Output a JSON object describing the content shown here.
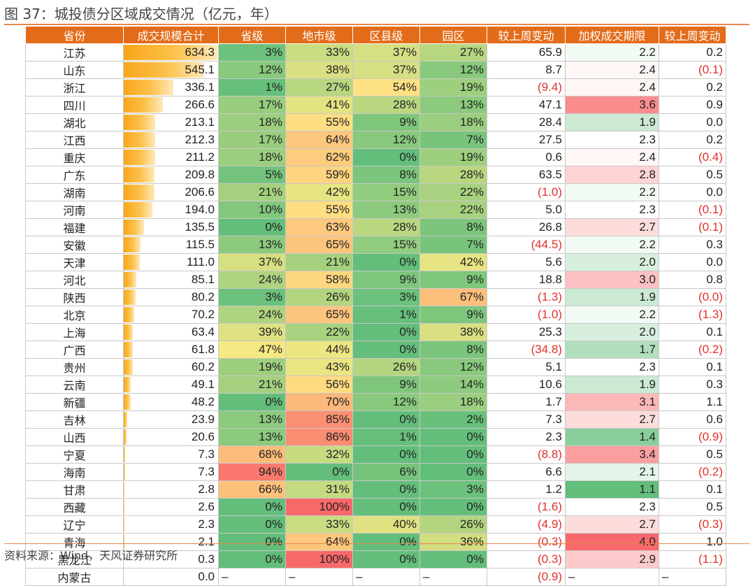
{
  "title": "图 37：城投债分区域成交情况（亿元，年）",
  "source": "资料来源：Wind，天风证券研究所",
  "columns": [
    "省份",
    "成交规模合计",
    "省级",
    "地市级",
    "区县级",
    "园区",
    "较上周变动",
    "加权成交期限",
    "较上周变动"
  ],
  "max_volume": 634.3,
  "rows": [
    {
      "prov": "江苏",
      "vol": "634.3",
      "sheng": "3%",
      "dishi": "33%",
      "quxian": "37%",
      "yuanqu": "27%",
      "chg1": "65.9",
      "term": "2.2",
      "chg2": "0.2"
    },
    {
      "prov": "山东",
      "vol": "545.1",
      "sheng": "12%",
      "dishi": "38%",
      "quxian": "37%",
      "yuanqu": "12%",
      "chg1": "8.7",
      "term": "2.4",
      "chg2": "(0.1)"
    },
    {
      "prov": "浙江",
      "vol": "336.1",
      "sheng": "1%",
      "dishi": "27%",
      "quxian": "54%",
      "yuanqu": "19%",
      "chg1": "(9.4)",
      "term": "2.4",
      "chg2": "0.2"
    },
    {
      "prov": "四川",
      "vol": "266.6",
      "sheng": "17%",
      "dishi": "41%",
      "quxian": "28%",
      "yuanqu": "13%",
      "chg1": "47.1",
      "term": "3.6",
      "chg2": "0.9"
    },
    {
      "prov": "湖北",
      "vol": "213.1",
      "sheng": "18%",
      "dishi": "55%",
      "quxian": "9%",
      "yuanqu": "18%",
      "chg1": "28.4",
      "term": "1.9",
      "chg2": "0.0"
    },
    {
      "prov": "江西",
      "vol": "212.3",
      "sheng": "17%",
      "dishi": "64%",
      "quxian": "12%",
      "yuanqu": "7%",
      "chg1": "27.5",
      "term": "2.3",
      "chg2": "0.2"
    },
    {
      "prov": "重庆",
      "vol": "211.2",
      "sheng": "18%",
      "dishi": "62%",
      "quxian": "0%",
      "yuanqu": "19%",
      "chg1": "0.6",
      "term": "2.4",
      "chg2": "(0.4)"
    },
    {
      "prov": "广东",
      "vol": "209.8",
      "sheng": "5%",
      "dishi": "59%",
      "quxian": "8%",
      "yuanqu": "28%",
      "chg1": "63.5",
      "term": "2.8",
      "chg2": "0.5"
    },
    {
      "prov": "湖南",
      "vol": "206.6",
      "sheng": "21%",
      "dishi": "42%",
      "quxian": "15%",
      "yuanqu": "22%",
      "chg1": "(1.0)",
      "term": "2.2",
      "chg2": "0.0"
    },
    {
      "prov": "河南",
      "vol": "194.0",
      "sheng": "10%",
      "dishi": "55%",
      "quxian": "13%",
      "yuanqu": "22%",
      "chg1": "5.0",
      "term": "2.3",
      "chg2": "(0.1)"
    },
    {
      "prov": "福建",
      "vol": "135.5",
      "sheng": "0%",
      "dishi": "63%",
      "quxian": "28%",
      "yuanqu": "8%",
      "chg1": "26.8",
      "term": "2.7",
      "chg2": "(0.1)"
    },
    {
      "prov": "安徽",
      "vol": "115.5",
      "sheng": "13%",
      "dishi": "65%",
      "quxian": "15%",
      "yuanqu": "7%",
      "chg1": "(44.5)",
      "term": "2.2",
      "chg2": "0.3"
    },
    {
      "prov": "天津",
      "vol": "111.0",
      "sheng": "37%",
      "dishi": "21%",
      "quxian": "0%",
      "yuanqu": "42%",
      "chg1": "5.6",
      "term": "2.0",
      "chg2": "0.0"
    },
    {
      "prov": "河北",
      "vol": "85.1",
      "sheng": "24%",
      "dishi": "58%",
      "quxian": "9%",
      "yuanqu": "9%",
      "chg1": "18.8",
      "term": "3.0",
      "chg2": "0.8"
    },
    {
      "prov": "陕西",
      "vol": "80.2",
      "sheng": "3%",
      "dishi": "26%",
      "quxian": "3%",
      "yuanqu": "67%",
      "chg1": "(1.3)",
      "term": "1.9",
      "chg2": "(0.0)"
    },
    {
      "prov": "北京",
      "vol": "70.2",
      "sheng": "24%",
      "dishi": "65%",
      "quxian": "1%",
      "yuanqu": "9%",
      "chg1": "(1.0)",
      "term": "2.2",
      "chg2": "(1.3)"
    },
    {
      "prov": "上海",
      "vol": "63.4",
      "sheng": "39%",
      "dishi": "22%",
      "quxian": "0%",
      "yuanqu": "38%",
      "chg1": "25.3",
      "term": "2.0",
      "chg2": "0.1"
    },
    {
      "prov": "广西",
      "vol": "61.8",
      "sheng": "47%",
      "dishi": "44%",
      "quxian": "0%",
      "yuanqu": "8%",
      "chg1": "(34.8)",
      "term": "1.7",
      "chg2": "(0.2)"
    },
    {
      "prov": "贵州",
      "vol": "60.2",
      "sheng": "19%",
      "dishi": "43%",
      "quxian": "26%",
      "yuanqu": "12%",
      "chg1": "5.1",
      "term": "2.3",
      "chg2": "0.1"
    },
    {
      "prov": "云南",
      "vol": "49.1",
      "sheng": "21%",
      "dishi": "56%",
      "quxian": "9%",
      "yuanqu": "14%",
      "chg1": "10.6",
      "term": "1.9",
      "chg2": "0.3"
    },
    {
      "prov": "新疆",
      "vol": "48.2",
      "sheng": "0%",
      "dishi": "70%",
      "quxian": "12%",
      "yuanqu": "18%",
      "chg1": "1.7",
      "term": "3.1",
      "chg2": "1.1"
    },
    {
      "prov": "吉林",
      "vol": "23.9",
      "sheng": "13%",
      "dishi": "85%",
      "quxian": "0%",
      "yuanqu": "2%",
      "chg1": "7.3",
      "term": "2.7",
      "chg2": "0.6"
    },
    {
      "prov": "山西",
      "vol": "20.6",
      "sheng": "13%",
      "dishi": "86%",
      "quxian": "1%",
      "yuanqu": "0%",
      "chg1": "2.3",
      "term": "1.4",
      "chg2": "(0.9)"
    },
    {
      "prov": "宁夏",
      "vol": "7.3",
      "sheng": "68%",
      "dishi": "32%",
      "quxian": "0%",
      "yuanqu": "0%",
      "chg1": "(8.8)",
      "term": "3.4",
      "chg2": "0.5"
    },
    {
      "prov": "海南",
      "vol": "7.3",
      "sheng": "94%",
      "dishi": "0%",
      "quxian": "6%",
      "yuanqu": "0%",
      "chg1": "6.6",
      "term": "2.1",
      "chg2": "(0.2)"
    },
    {
      "prov": "甘肃",
      "vol": "2.8",
      "sheng": "66%",
      "dishi": "31%",
      "quxian": "0%",
      "yuanqu": "3%",
      "chg1": "1.2",
      "term": "1.1",
      "chg2": "0.1"
    },
    {
      "prov": "西藏",
      "vol": "2.6",
      "sheng": "0%",
      "dishi": "100%",
      "quxian": "0%",
      "yuanqu": "0%",
      "chg1": "(1.6)",
      "term": "2.3",
      "chg2": "0.5"
    },
    {
      "prov": "辽宁",
      "vol": "2.3",
      "sheng": "0%",
      "dishi": "33%",
      "quxian": "40%",
      "yuanqu": "26%",
      "chg1": "(4.9)",
      "term": "2.7",
      "chg2": "(0.3)"
    },
    {
      "prov": "青海",
      "vol": "2.1",
      "sheng": "0%",
      "dishi": "64%",
      "quxian": "0%",
      "yuanqu": "36%",
      "chg1": "(0.3)",
      "term": "4.0",
      "chg2": "1.0"
    },
    {
      "prov": "黑龙江",
      "vol": "0.3",
      "sheng": "0%",
      "dishi": "100%",
      "quxian": "0%",
      "yuanqu": "0%",
      "chg1": "(0.3)",
      "term": "2.9",
      "chg2": "(1.1)"
    },
    {
      "prov": "内蒙古",
      "vol": "0.0",
      "sheng": "–",
      "dishi": "–",
      "quxian": "–",
      "yuanqu": "–",
      "chg1": "(0.9)",
      "term": "–",
      "chg2": "–"
    }
  ]
}
